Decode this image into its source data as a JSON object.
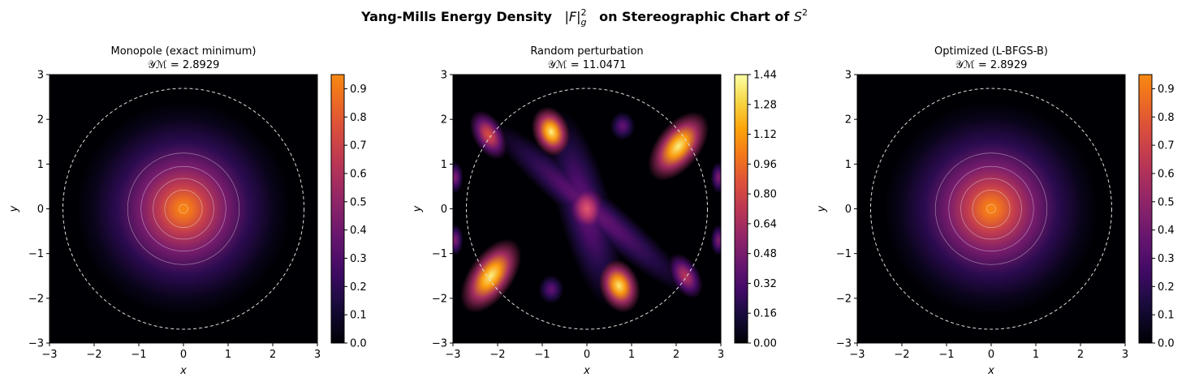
{
  "suptitle": {
    "parts": [
      "Yang-Mills Energy Density",
      "|F|",
      "2",
      "g",
      "on Stereographic Chart of",
      "S",
      "2"
    ]
  },
  "chart_data": [
    {
      "type": "contour",
      "title": "Monopole (exact minimum)",
      "subtitle": "𝒴ℳ = 2.8929",
      "xlabel": "x",
      "ylabel": "y",
      "xlim": [
        -3,
        3
      ],
      "ylim": [
        -3,
        3
      ],
      "xticks": [
        {
          "value": -3,
          "label": "−3"
        },
        {
          "value": -2,
          "label": "−2"
        },
        {
          "value": -1,
          "label": "−1"
        },
        0,
        1,
        2,
        3
      ],
      "yticks": [
        {
          "value": -3,
          "label": "−3"
        },
        {
          "value": -2,
          "label": "−2"
        },
        {
          "value": -1,
          "label": "−1"
        },
        0,
        1,
        2,
        3
      ],
      "colormap": "inferno",
      "circle_radius": 2.7,
      "colorbar": {
        "lim": [
          0,
          0.95
        ],
        "ticks": [
          {
            "value": 0,
            "label": "0.0"
          },
          0.1,
          0.2,
          0.3,
          0.4,
          0.5,
          0.6,
          0.7,
          0.8,
          0.9
        ]
      }
    },
    {
      "type": "contour",
      "title": "Random perturbation",
      "subtitle": "𝒴ℳ = 11.0471",
      "xlabel": "x",
      "ylabel": "y",
      "xlim": [
        -3,
        3
      ],
      "ylim": [
        -3,
        3
      ],
      "xticks": [
        {
          "value": -3,
          "label": "−3"
        },
        {
          "value": -2,
          "label": "−2"
        },
        {
          "value": -1,
          "label": "−1"
        },
        0,
        1,
        2,
        3
      ],
      "yticks": [
        {
          "value": -3,
          "label": "−3"
        },
        {
          "value": -2,
          "label": "−2"
        },
        {
          "value": -1,
          "label": "−1"
        },
        0,
        1,
        2,
        3
      ],
      "colormap": "inferno",
      "circle_radius": 2.7,
      "colorbar": {
        "lim": [
          0,
          1.44
        ],
        "ticks": [
          {
            "value": 0,
            "label": "0.00"
          },
          0.16,
          0.32,
          0.48,
          0.64,
          {
            "value": 0.8,
            "label": "0.80"
          },
          0.96,
          1.12,
          1.28,
          1.44
        ]
      }
    },
    {
      "type": "contour",
      "title": "Optimized (L-BFGS-B)",
      "subtitle": "𝒴ℳ = 2.8929",
      "xlabel": "x",
      "ylabel": "y",
      "xlim": [
        -3,
        3
      ],
      "ylim": [
        -3,
        3
      ],
      "xticks": [
        {
          "value": -3,
          "label": "−3"
        },
        {
          "value": -2,
          "label": "−2"
        },
        {
          "value": -1,
          "label": "−1"
        },
        0,
        1,
        2,
        3
      ],
      "yticks": [
        {
          "value": -3,
          "label": "−3"
        },
        {
          "value": -2,
          "label": "−2"
        },
        {
          "value": -1,
          "label": "−1"
        },
        0,
        1,
        2,
        3
      ],
      "colormap": "inferno",
      "circle_radius": 2.7,
      "colorbar": {
        "lim": [
          0,
          0.95
        ],
        "ticks": [
          {
            "value": 0,
            "label": "0.0"
          },
          0.1,
          0.2,
          0.3,
          0.4,
          0.5,
          0.6,
          0.7,
          0.8,
          0.9
        ]
      }
    }
  ]
}
